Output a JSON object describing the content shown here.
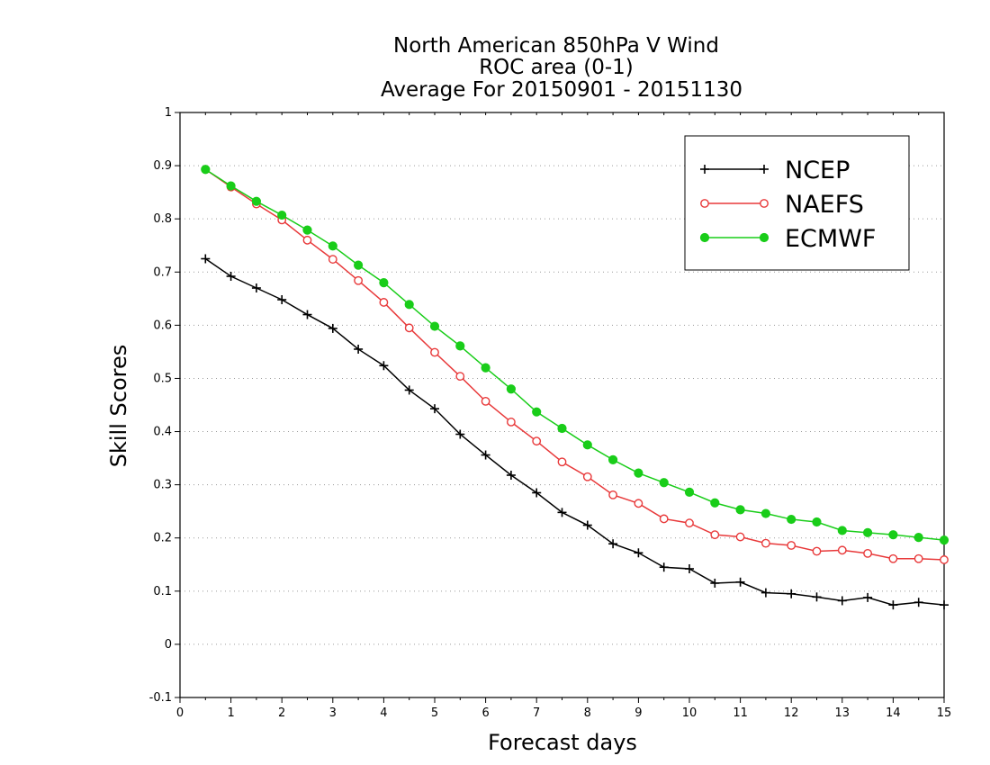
{
  "chart_data": {
    "type": "line",
    "title": [
      "North American 850hPa V Wind",
      "ROC area (0-1)",
      "Average For 20150901 - 20151130"
    ],
    "xlabel": "Forecast days",
    "ylabel": "Skill Scores",
    "xlim": [
      0,
      15
    ],
    "ylim": [
      -0.1,
      1
    ],
    "xticks": [
      0,
      1,
      2,
      3,
      4,
      5,
      6,
      7,
      8,
      9,
      10,
      11,
      12,
      13,
      14,
      15
    ],
    "yticks": [
      -0.1,
      0,
      0.1,
      0.2,
      0.3,
      0.4,
      0.5,
      0.6,
      0.7,
      0.8,
      0.9,
      1
    ],
    "ytick_labels": [
      "-0.1",
      "0",
      "0.1",
      "0.2",
      "0.3",
      "0.4",
      "0.5",
      "0.6",
      "0.7",
      "0.8",
      "0.9",
      "1"
    ],
    "grid": "horizontal-dotted",
    "legend_position": "top-right",
    "x": [
      0.5,
      1,
      1.5,
      2,
      2.5,
      3,
      3.5,
      4,
      4.5,
      5,
      5.5,
      6,
      6.5,
      7,
      7.5,
      8,
      8.5,
      9,
      9.5,
      10,
      10.5,
      11,
      11.5,
      12,
      12.5,
      13,
      13.5,
      14,
      14.5,
      15
    ],
    "series": [
      {
        "name": "NCEP",
        "color": "#000000",
        "marker": "plus",
        "values": [
          0.725,
          0.692,
          0.67,
          0.648,
          0.62,
          0.594,
          0.555,
          0.524,
          0.478,
          0.443,
          0.395,
          0.356,
          0.318,
          0.285,
          0.248,
          0.224,
          0.189,
          0.172,
          0.145,
          0.142,
          0.115,
          0.117,
          0.097,
          0.095,
          0.089,
          0.082,
          0.088,
          0.074,
          0.079,
          0.074
        ]
      },
      {
        "name": "NAEFS",
        "color": "#e8393a",
        "marker": "open-circle",
        "values": [
          0.893,
          0.86,
          0.828,
          0.798,
          0.76,
          0.724,
          0.684,
          0.643,
          0.595,
          0.549,
          0.504,
          0.457,
          0.418,
          0.382,
          0.343,
          0.315,
          0.281,
          0.265,
          0.236,
          0.228,
          0.206,
          0.202,
          0.19,
          0.186,
          0.175,
          0.177,
          0.171,
          0.161,
          0.161,
          0.159
        ]
      },
      {
        "name": "ECMWF",
        "color": "#19cd19",
        "marker": "filled-circle",
        "values": [
          0.893,
          0.862,
          0.833,
          0.807,
          0.779,
          0.749,
          0.713,
          0.68,
          0.639,
          0.598,
          0.561,
          0.52,
          0.48,
          0.437,
          0.406,
          0.375,
          0.347,
          0.322,
          0.304,
          0.286,
          0.266,
          0.253,
          0.246,
          0.235,
          0.23,
          0.214,
          0.21,
          0.206,
          0.201,
          0.196
        ]
      }
    ]
  }
}
